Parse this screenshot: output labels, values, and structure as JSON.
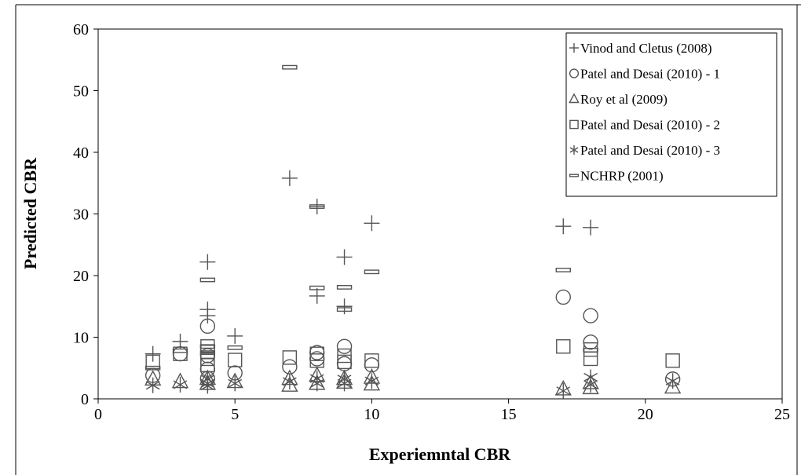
{
  "chart_data": {
    "type": "scatter",
    "xlabel": "Experiemntal CBR",
    "ylabel": "Predicted CBR",
    "xlim": [
      0,
      25
    ],
    "ylim": [
      0,
      60
    ],
    "x_ticks": [
      "0",
      "5",
      "10",
      "15",
      "20",
      "25"
    ],
    "y_ticks": [
      "0",
      "10",
      "20",
      "30",
      "40",
      "50",
      "60"
    ],
    "grid": false,
    "legend_position": "top-right",
    "series": [
      {
        "name": "Vinod and Cletus (2008)",
        "marker": "plus",
        "points": [
          [
            2,
            7.3
          ],
          [
            3,
            9.3
          ],
          [
            4,
            22.2
          ],
          [
            4,
            14.5
          ],
          [
            4,
            13.5
          ],
          [
            5,
            10.2
          ],
          [
            7,
            35.8
          ],
          [
            8,
            31.2
          ],
          [
            8,
            16.7
          ],
          [
            9,
            23
          ],
          [
            9,
            15
          ],
          [
            10,
            28.5
          ],
          [
            17,
            28
          ],
          [
            18,
            27.8
          ]
        ]
      },
      {
        "name": "Patel and Desai (2010) - 1",
        "marker": "circle",
        "points": [
          [
            2,
            3.8
          ],
          [
            3,
            7.3
          ],
          [
            4,
            11.8
          ],
          [
            4,
            7
          ],
          [
            4,
            4.8
          ],
          [
            4,
            3.3
          ],
          [
            5,
            4.2
          ],
          [
            7,
            5.2
          ],
          [
            8,
            7.5
          ],
          [
            8,
            6.5
          ],
          [
            9,
            8.5
          ],
          [
            9,
            5.7
          ],
          [
            10,
            5.5
          ],
          [
            17,
            16.5
          ],
          [
            18,
            13.5
          ],
          [
            18,
            9.2
          ],
          [
            21,
            3.2
          ]
        ]
      },
      {
        "name": "Roy et al (2009)",
        "marker": "triangle",
        "points": [
          [
            2,
            3.2
          ],
          [
            3,
            2.8
          ],
          [
            4,
            2.5
          ],
          [
            4,
            3.3
          ],
          [
            5,
            2.8
          ],
          [
            7,
            2.2
          ],
          [
            7,
            3.3
          ],
          [
            8,
            2.5
          ],
          [
            8,
            3.8
          ],
          [
            9,
            2.7
          ],
          [
            9,
            3.3
          ],
          [
            10,
            2.4
          ],
          [
            10,
            3.5
          ],
          [
            17,
            1.6
          ],
          [
            18,
            1.8
          ],
          [
            18,
            2.6
          ],
          [
            21,
            1.9
          ]
        ]
      },
      {
        "name": "Patel and Desai (2010) - 2",
        "marker": "square",
        "points": [
          [
            2,
            6
          ],
          [
            3,
            7.3
          ],
          [
            4,
            8.5
          ],
          [
            4,
            7.6
          ],
          [
            4,
            6.5
          ],
          [
            4,
            5.5
          ],
          [
            5,
            6.3
          ],
          [
            7,
            6.7
          ],
          [
            8,
            7.3
          ],
          [
            8,
            6.2
          ],
          [
            9,
            7
          ],
          [
            9,
            6
          ],
          [
            10,
            6.2
          ],
          [
            17,
            8.5
          ],
          [
            18,
            8
          ],
          [
            18,
            6.5
          ],
          [
            21,
            6.2
          ]
        ]
      },
      {
        "name": "Patel and Desai (2010) - 3",
        "marker": "asterisk",
        "points": [
          [
            2,
            2.2
          ],
          [
            3,
            2.3
          ],
          [
            4,
            3.2
          ],
          [
            4,
            2.5
          ],
          [
            4,
            2.1
          ],
          [
            5,
            2.5
          ],
          [
            7,
            2.8
          ],
          [
            8,
            3.3
          ],
          [
            8,
            2.5
          ],
          [
            9,
            3.2
          ],
          [
            9,
            2.5
          ],
          [
            10,
            2.9
          ],
          [
            17,
            1.3
          ],
          [
            18,
            3.5
          ],
          [
            18,
            2.3
          ],
          [
            21,
            2.9
          ]
        ]
      },
      {
        "name": "NCHRP (2001)",
        "marker": "dash",
        "points": [
          [
            2,
            5
          ],
          [
            3,
            7.8
          ],
          [
            4,
            19.3
          ],
          [
            4,
            8.5
          ],
          [
            4,
            7.5
          ],
          [
            5,
            8.3
          ],
          [
            7,
            53.8
          ],
          [
            8,
            18
          ],
          [
            8,
            31.2
          ],
          [
            9,
            18.1
          ],
          [
            9,
            14.5
          ],
          [
            10,
            20.6
          ],
          [
            17,
            20.9
          ],
          [
            18,
            7.9
          ]
        ]
      }
    ]
  }
}
